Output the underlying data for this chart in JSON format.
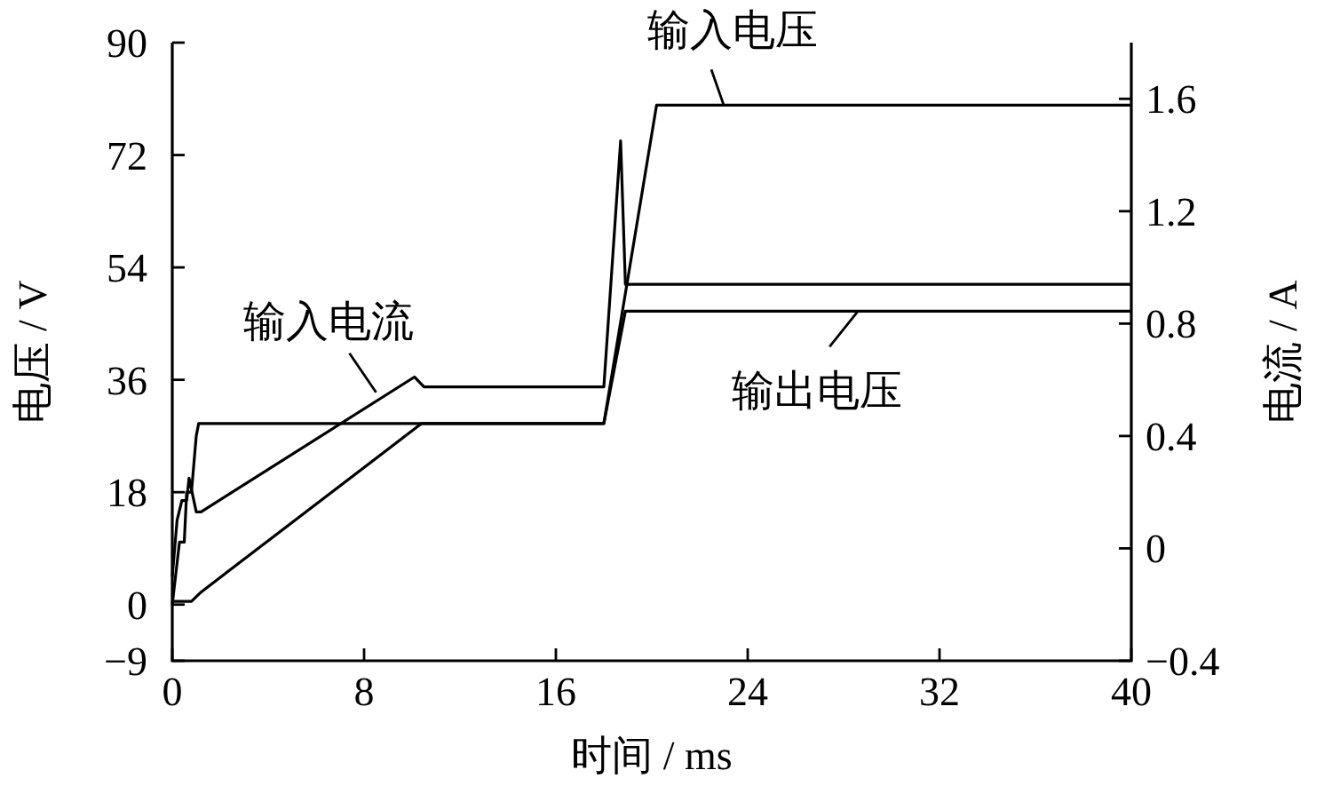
{
  "chart_data": {
    "type": "line",
    "xlabel": "时间 / ms",
    "ylabel": "电压 / V",
    "y2label": "电流 / A",
    "xlim": [
      0,
      40
    ],
    "xticks": [
      0,
      8,
      16,
      24,
      32,
      40
    ],
    "ylim": [
      -9,
      90
    ],
    "yticks": [
      -9,
      0,
      18,
      36,
      54,
      72,
      90
    ],
    "y2lim": [
      -0.4,
      1.8
    ],
    "y2ticks": [
      -0.4,
      0,
      0.4,
      0.8,
      1.2,
      1.6
    ],
    "series": [
      {
        "color": "#000000",
        "x": [
          0,
          0.3,
          0.5,
          0.6,
          0.8,
          1.0,
          1.1,
          18.0,
          20.2,
          40
        ],
        "values": [
          0,
          10,
          10,
          18,
          18,
          27,
          29,
          29,
          80,
          80
        ]
      },
      {
        "color": "#000000",
        "axis": "y2",
        "x": [
          0,
          0.2,
          0.4,
          0.6,
          0.7,
          0.9,
          1.0,
          1.2,
          10.1,
          10.5,
          18.0,
          18.7,
          18.9,
          40
        ],
        "values": [
          -0.1,
          0.1,
          0.17,
          0.17,
          0.25,
          0.17,
          0.13,
          0.13,
          0.61,
          0.575,
          0.575,
          1.45,
          0.94,
          0.94
        ]
      },
      {
        "color": "#000000",
        "x": [
          0,
          0.8,
          1.2,
          10.4,
          18.0,
          18.9,
          40
        ],
        "values": [
          0.5,
          0.5,
          2,
          29,
          29,
          47,
          47
        ]
      }
    ],
    "annotations": [
      {
        "text": "输入电流",
        "x": 8.5,
        "y": 34
      },
      {
        "text": "输入电压",
        "x": 23,
        "y": 80
      },
      {
        "text": "输出电压",
        "x": 28.6,
        "y": 47
      }
    ]
  }
}
